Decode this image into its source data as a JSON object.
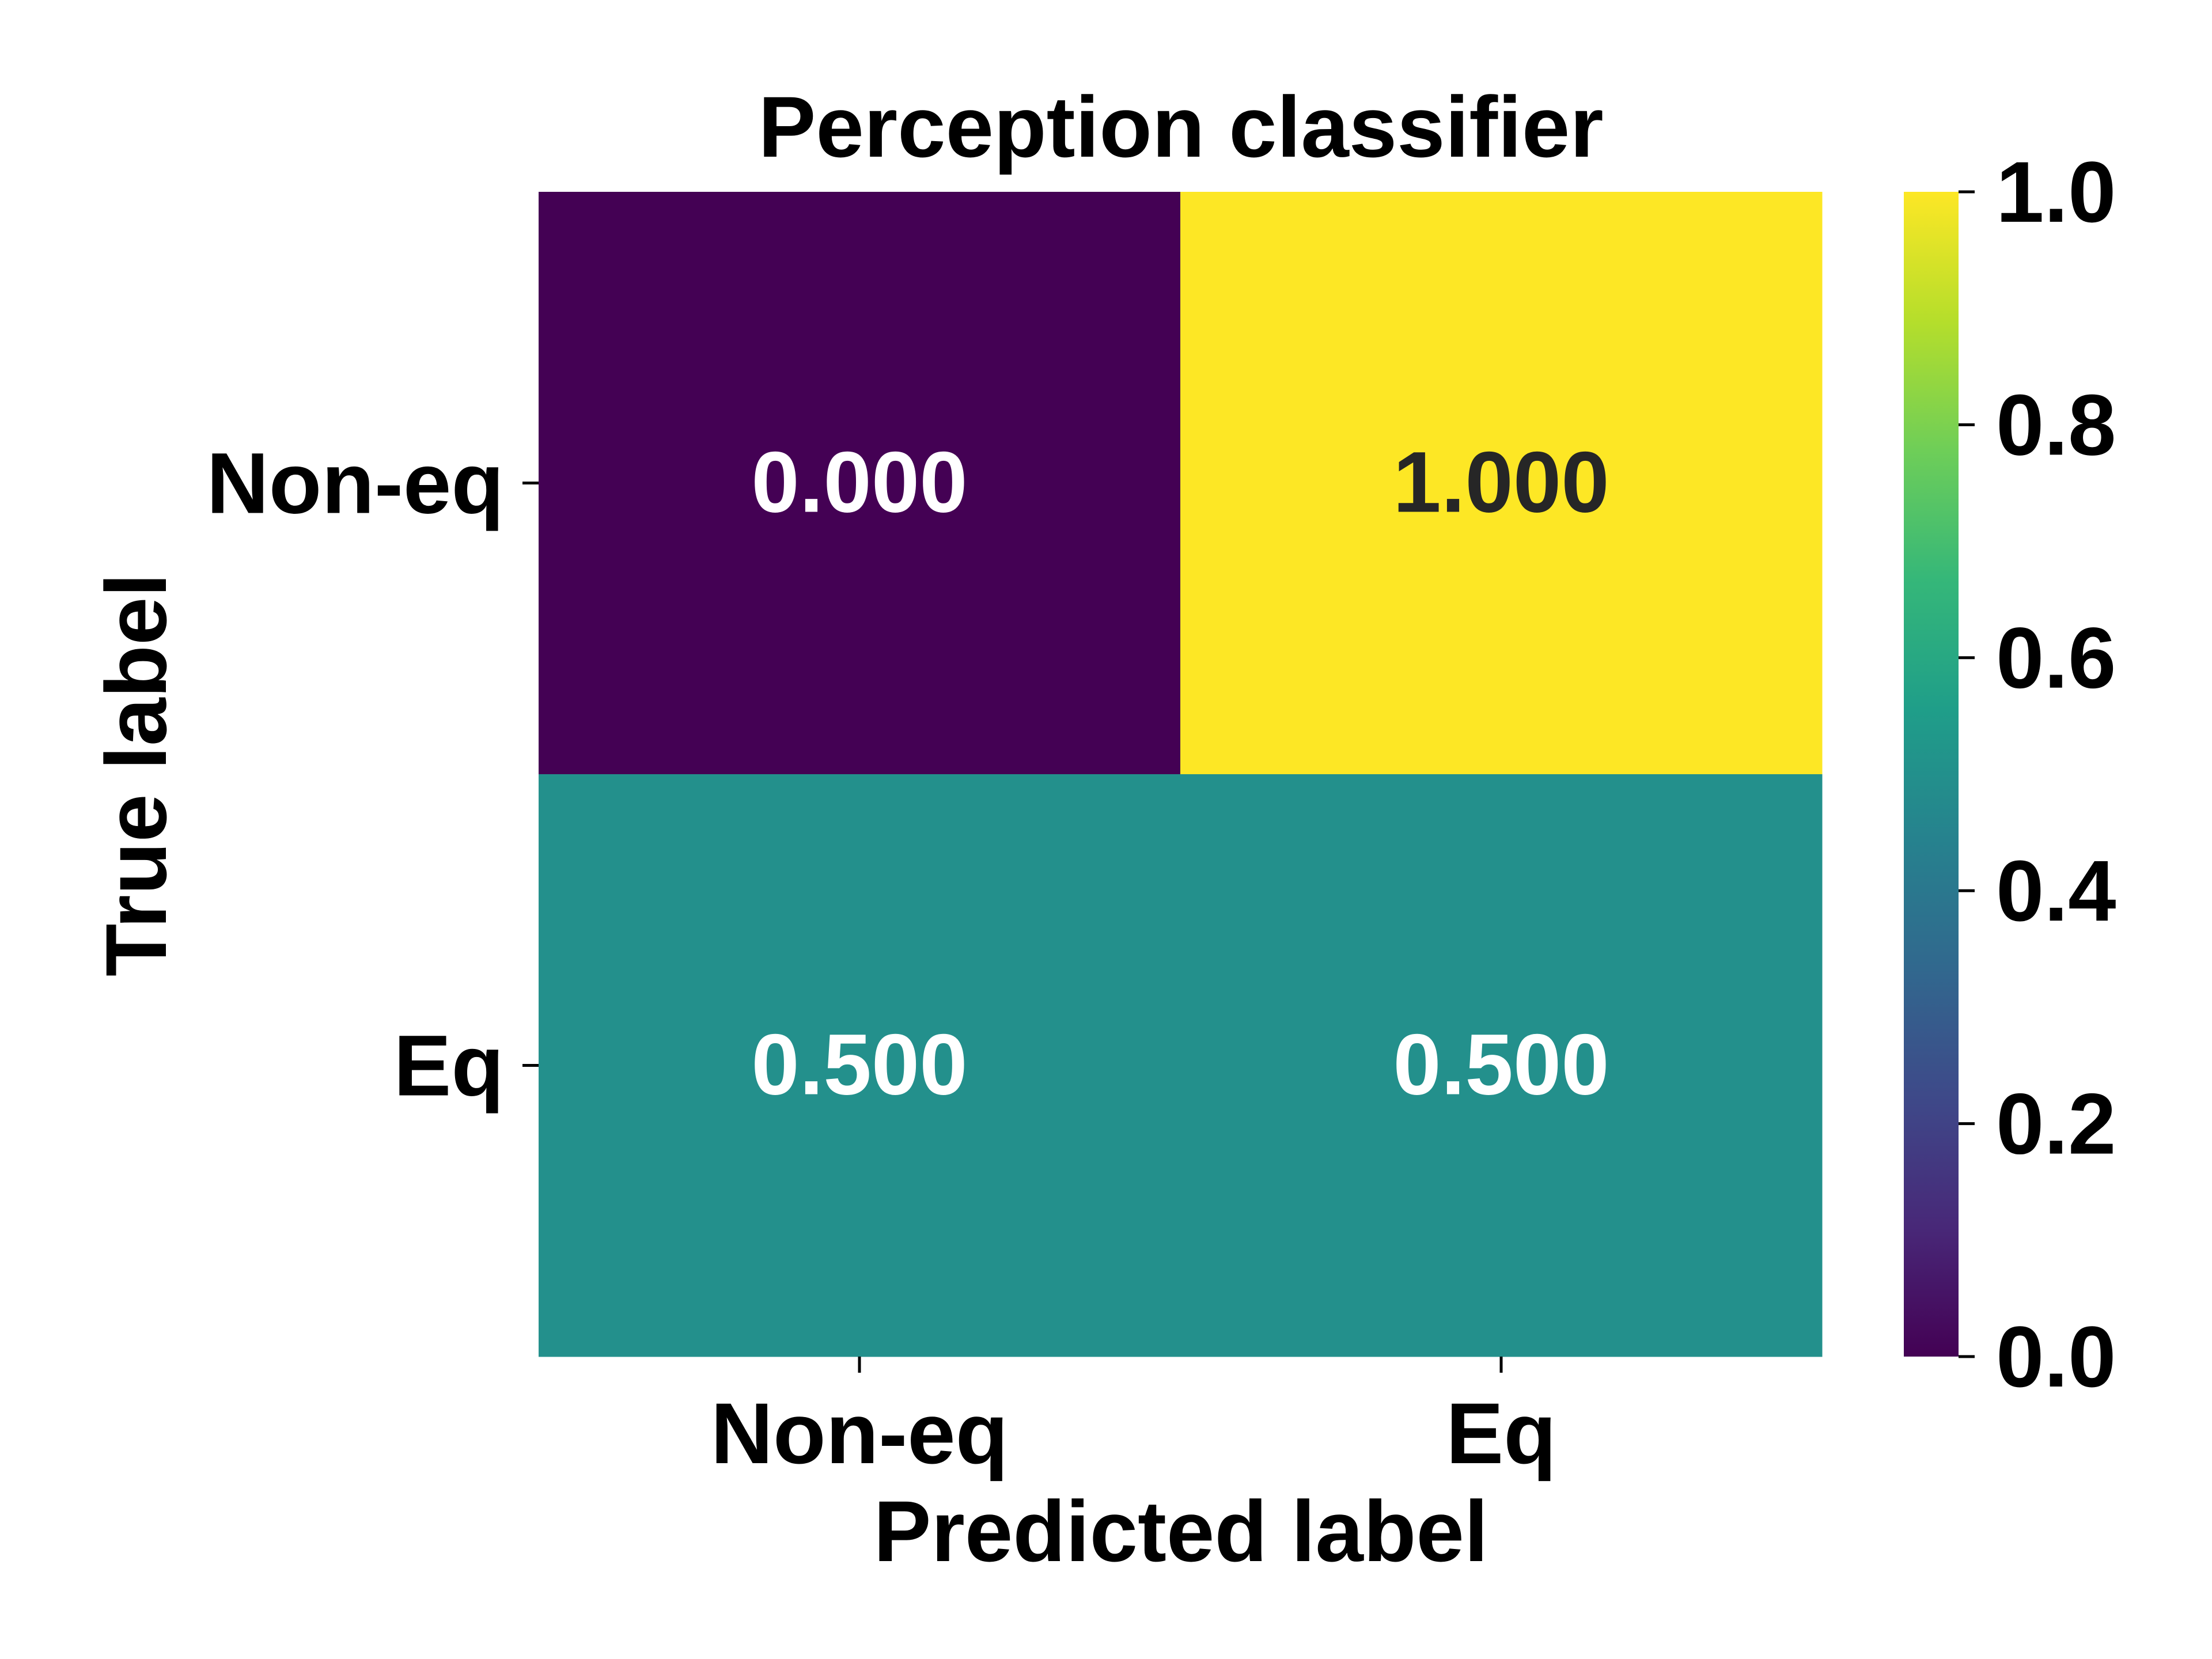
{
  "chart_data": {
    "type": "heatmap",
    "title": "Perception classifier",
    "xlabel": "Predicted label",
    "ylabel": "True label",
    "x_categories": [
      "Non-eq",
      "Eq"
    ],
    "y_categories": [
      "Non-eq",
      "Eq"
    ],
    "values": [
      [
        0.0,
        1.0
      ],
      [
        0.5,
        0.5
      ]
    ],
    "cell_labels": [
      [
        "0.000",
        "1.000"
      ],
      [
        "0.500",
        "0.500"
      ]
    ],
    "colormap": "viridis",
    "vmin": 0.0,
    "vmax": 1.0,
    "colorbar_ticks": [
      0.0,
      0.2,
      0.4,
      0.6,
      0.8,
      1.0
    ],
    "colorbar_tick_labels": [
      "0.0",
      "0.2",
      "0.4",
      "0.6",
      "0.8",
      "1.0"
    ],
    "colors": {
      "viridis_stops": [
        "#440154",
        "#482878",
        "#3e4989",
        "#31688e",
        "#26828e",
        "#1f9e89",
        "#35b779",
        "#6ece58",
        "#b5de2b",
        "#fde725"
      ],
      "annotation_light": "#ffffff",
      "annotation_dark": "#262626",
      "text": "#000000"
    }
  }
}
